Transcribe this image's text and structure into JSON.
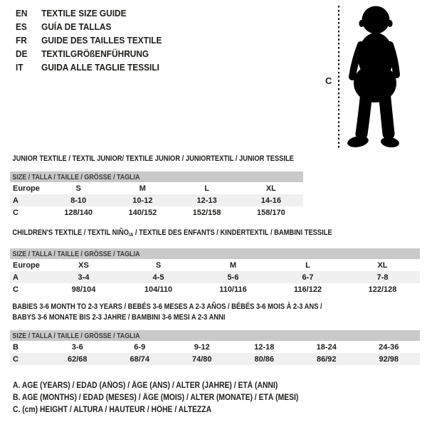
{
  "colors": {
    "silhouette": "#000000",
    "table_header_bg": "#c9c9c9",
    "table_header_text": "#3a3a3a",
    "row_alt_bg": "#f0f0f0",
    "text": "#1d1d1b"
  },
  "languages": [
    {
      "code": "EN",
      "label": "TEXTILE SIZE GUIDE"
    },
    {
      "code": "ES",
      "label": "GUÍA DE TALLAS"
    },
    {
      "code": "FR",
      "label": "GUIDE DES TAILLES TEXTILE"
    },
    {
      "code": "DE",
      "label": "TEXTILGRÖßENFÜHRUNG"
    },
    {
      "code": "IT",
      "label": "GUIDA ALLE TAGLIE TESSILI"
    }
  ],
  "figure": {
    "height_marker_label": "C"
  },
  "tables": [
    {
      "title_lines": [
        [
          {
            "t": "JUNIOR TEXTILE / TEXTIL JUNIOR/ TEXTILE JUNIOR / JUNIORTEXTIL / JUNIOR TESSILE"
          }
        ]
      ],
      "size_header": "SIZE / TALLA / TAILLE / GRÖSSE / TAGLIA",
      "rows": [
        {
          "label": "Europe",
          "values": [
            "S",
            "M",
            "L",
            "XL"
          ]
        },
        {
          "label": "A",
          "values": [
            "8-10",
            "10-12",
            "12-13",
            "14-16"
          ]
        },
        {
          "label": "C",
          "values": [
            "128/140",
            "140/152",
            "152/158",
            "158/170"
          ]
        }
      ]
    },
    {
      "title_lines": [
        [
          {
            "t": "CHILDREN'S TEXTILE / TEXTIL NIÑO"
          },
          {
            "t": "/A",
            "sub": true
          },
          {
            "t": " / TEXTILE DES ENFANTS / KINDERTEXTIL / BAMBINI TESSILE"
          }
        ]
      ],
      "size_header": "SIZE / TALLA / TAILLE / GRÖSSE / TAGLIA",
      "rows": [
        {
          "label": "Europe",
          "values": [
            "XS",
            "S",
            "M",
            "L",
            "XL"
          ]
        },
        {
          "label": "A",
          "values": [
            "3-4",
            "4-5",
            "5-6",
            "6-7",
            "7-8"
          ]
        },
        {
          "label": "C",
          "values": [
            "98/104",
            "104/110",
            "110/116",
            "116/122",
            "122/128"
          ]
        }
      ]
    },
    {
      "title_lines": [
        [
          {
            "t": "BABIES 3-6 MONTH TO 2-3 YEARS / BEBÉS 3-6 MESES A 2-3 AÑOS / BÉBÉS 3-6 MOIS À 2-3 ANS /"
          }
        ],
        [
          {
            "t": "BABYS 3-6 MONATE BIS 2-3 JAHRE / BAMBINI 3-6 MESI A 2-3 ANNI"
          }
        ]
      ],
      "size_header": "SIZE / TALLA / TAILLE / GRÖSSE / TAGLIA",
      "rows": [
        {
          "label": "B",
          "values": [
            "3-6",
            "6-9",
            "9-12",
            "12-18",
            "18-24",
            "24-36"
          ]
        },
        {
          "label": "C",
          "values": [
            "62/68",
            "68/74",
            "74/80",
            "80/86",
            "86/92",
            "92/98"
          ]
        }
      ]
    }
  ],
  "legend": [
    "A. AGE (YEARS) / EDAD (AÑOS) / ÂGE (ANS) / ALTER (JAHRE) / ETÀ (ANNI)",
    "B. AGE (MONTHS) / EDAD (MESES) / ÂGE (MOIS) / ALTER (MONATE) / ETÀ (MESI)",
    "C. (cm) HEIGHT / ALTURA / HAUTEUR / HÖHE / ALTEZZA"
  ]
}
